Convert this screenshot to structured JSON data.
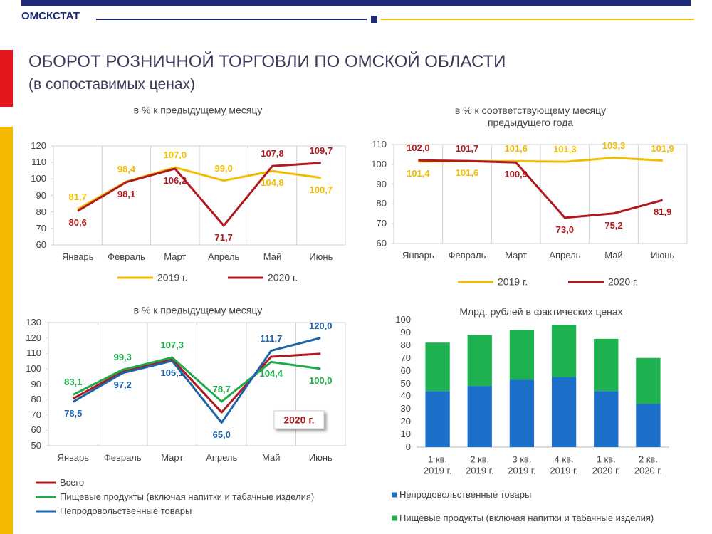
{
  "header": {
    "brand": "ОМСКСТАТ",
    "title": "ОБОРОТ РОЗНИЧНОЙ ТОРГОВЛИ ПО ОМСКОЙ ОБЛАСТИ",
    "subtitle": "(в сопоставимых ценах)"
  },
  "chart_data": [
    {
      "type": "line",
      "title": "в % к предыдущему месяцу",
      "categories": [
        "Январь",
        "Февраль",
        "Март",
        "Апрель",
        "Май",
        "Июнь"
      ],
      "ylim": [
        60,
        120
      ],
      "yticks": [
        60,
        70,
        80,
        90,
        100,
        110,
        120
      ],
      "legend": "bottom",
      "series": [
        {
          "name": "2019 г.",
          "color": "#f2bd00",
          "values": [
            81.7,
            98.4,
            107.0,
            99.0,
            104.8,
            100.7
          ],
          "value_labels": [
            "81,7",
            "98,4",
            "107,0",
            "99,0",
            "104,8",
            "100,7"
          ]
        },
        {
          "name": "2020 г.",
          "color": "#b0191e",
          "values": [
            80.6,
            98.1,
            106.2,
            71.7,
            107.8,
            109.7
          ],
          "value_labels": [
            "80,6",
            "98,1",
            "106,2",
            "71,7",
            "107,8",
            "109,7"
          ]
        }
      ]
    },
    {
      "type": "line",
      "title": "в % к соответствующему месяцу предыдущего года",
      "categories": [
        "Январь",
        "Февраль",
        "Март",
        "Апрель",
        "Май",
        "Июнь"
      ],
      "ylim": [
        60,
        110
      ],
      "yticks": [
        60,
        70,
        80,
        90,
        100,
        110
      ],
      "legend": "bottom",
      "series": [
        {
          "name": "2019 г.",
          "color": "#f2bd00",
          "values": [
            101.4,
            101.6,
            101.6,
            101.3,
            103.3,
            101.9
          ],
          "value_labels": [
            "101,4",
            "101,6",
            "101,6",
            "101,3",
            "103,3",
            "101,9"
          ]
        },
        {
          "name": "2020 г.",
          "color": "#b0191e",
          "values": [
            102.0,
            101.7,
            100.9,
            73.0,
            75.2,
            81.9
          ],
          "value_labels": [
            "102,0",
            "101,7",
            "100,9",
            "73,0",
            "75,2",
            "81,9"
          ]
        }
      ]
    },
    {
      "type": "line",
      "title": "в % к предыдущему месяцу",
      "annotation": "2020 г.",
      "categories": [
        "Январь",
        "Февраль",
        "Март",
        "Апрель",
        "Май",
        "Июнь"
      ],
      "ylim": [
        50,
        130
      ],
      "yticks": [
        50,
        60,
        70,
        80,
        90,
        100,
        110,
        120,
        130
      ],
      "legend": "bottom",
      "series": [
        {
          "name": "Всего",
          "color": "#b0191e",
          "values": [
            80.6,
            98.1,
            106.2,
            71.7,
            107.8,
            109.7
          ]
        },
        {
          "name": "Пищевые продукты (включая напитки и табачные изделия)",
          "color": "#1faa4a",
          "values": [
            83.1,
            99.3,
            107.3,
            78.7,
            104.4,
            100.0
          ],
          "value_labels": [
            "83,1",
            "99,3",
            "107,3",
            "78,7",
            "104,4",
            "100,0"
          ]
        },
        {
          "name": "Непродовольственные товары",
          "color": "#1c63a8",
          "values": [
            78.5,
            97.2,
            105.1,
            65.0,
            111.7,
            120.0
          ],
          "value_labels": [
            "78,5",
            "97,2",
            "105,1",
            "65,0",
            "111,7",
            "120,0"
          ]
        }
      ]
    },
    {
      "type": "stacked_bar",
      "title": "Млрд. рублей в фактических ценах",
      "categories": [
        "1 кв. 2019 г.",
        "2 кв. 2019 г.",
        "3 кв. 2019 г.",
        "4 кв. 2019 г.",
        "1 кв. 2020 г.",
        "2 кв. 2020 г."
      ],
      "ylim": [
        0,
        100
      ],
      "yticks": [
        0,
        10,
        20,
        30,
        40,
        50,
        60,
        70,
        80,
        90,
        100
      ],
      "legend": "bottom",
      "series": [
        {
          "name": "Непродовольственные товары",
          "color": "#1b6fc8",
          "values": [
            44,
            48,
            53,
            55,
            44,
            34
          ]
        },
        {
          "name": "Пищевые продукты (включая напитки и табачные изделия)",
          "color": "#1db150",
          "values": [
            38,
            40,
            39,
            41,
            41,
            36
          ]
        }
      ]
    }
  ]
}
